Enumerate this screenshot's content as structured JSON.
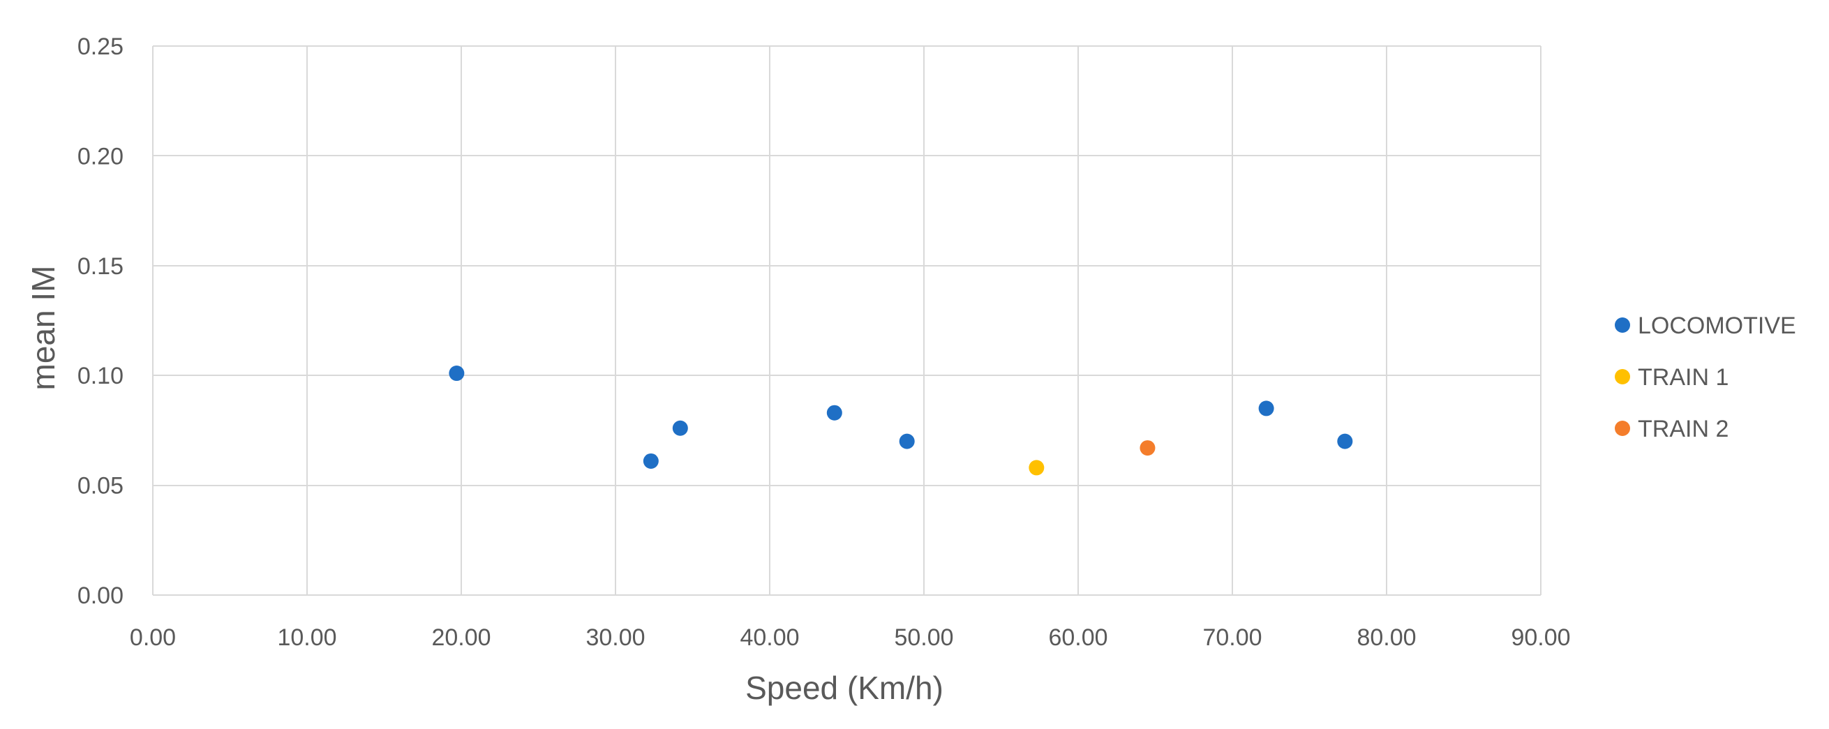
{
  "chart_data": {
    "type": "scatter",
    "xlabel": "Speed (Km/h)",
    "ylabel": "mean IM",
    "xlim": [
      0,
      90
    ],
    "ylim": [
      0,
      0.25
    ],
    "x_ticks": [
      0,
      10,
      20,
      30,
      40,
      50,
      60,
      70,
      80,
      90
    ],
    "y_ticks": [
      0,
      0.05,
      0.1,
      0.15,
      0.2,
      0.25
    ],
    "x_tick_labels": [
      "0.00",
      "10.00",
      "20.00",
      "30.00",
      "40.00",
      "50.00",
      "60.00",
      "70.00",
      "80.00",
      "90.00"
    ],
    "y_tick_labels": [
      "0.00",
      "0.05",
      "0.10",
      "0.15",
      "0.20",
      "0.25"
    ],
    "grid": true,
    "legend_position": "right",
    "series": [
      {
        "name": "LOCOMOTIVE",
        "color": "#1f6fc5",
        "points": [
          {
            "x": 19.7,
            "y": 0.101
          },
          {
            "x": 32.3,
            "y": 0.061
          },
          {
            "x": 34.2,
            "y": 0.076
          },
          {
            "x": 44.2,
            "y": 0.083
          },
          {
            "x": 48.9,
            "y": 0.07
          },
          {
            "x": 72.2,
            "y": 0.085
          },
          {
            "x": 77.3,
            "y": 0.07
          }
        ]
      },
      {
        "name": "TRAIN 1",
        "color": "#ffc000",
        "points": [
          {
            "x": 57.3,
            "y": 0.058
          }
        ]
      },
      {
        "name": "TRAIN 2",
        "color": "#f47d2b",
        "points": [
          {
            "x": 64.5,
            "y": 0.067
          }
        ]
      }
    ]
  }
}
